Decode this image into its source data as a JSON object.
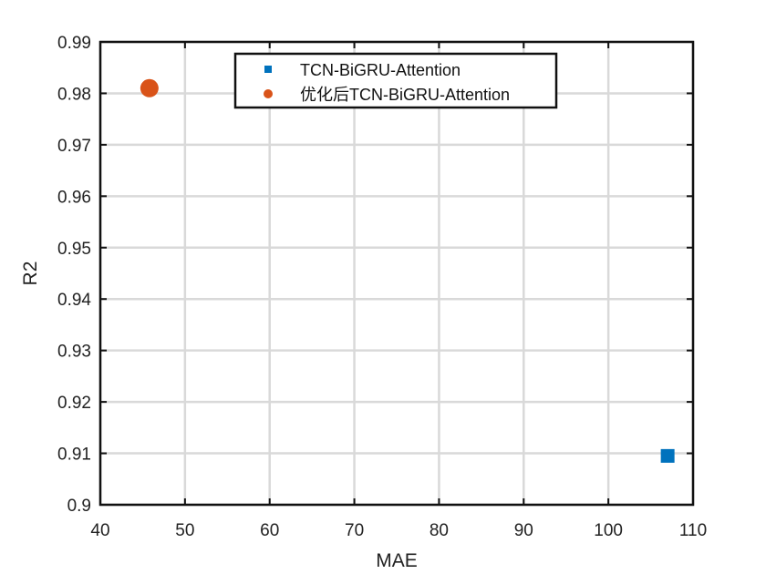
{
  "chart_data": {
    "type": "scatter",
    "xlabel": "MAE",
    "ylabel": "R2",
    "xlim": [
      40,
      110
    ],
    "ylim": [
      0.9,
      0.99
    ],
    "x_ticks": [
      "40",
      "50",
      "60",
      "70",
      "80",
      "90",
      "100",
      "110"
    ],
    "y_ticks": [
      "0.9",
      "0.91",
      "0.92",
      "0.93",
      "0.94",
      "0.95",
      "0.96",
      "0.97",
      "0.98",
      "0.99"
    ],
    "grid": true,
    "legend_position": "top-center",
    "series": [
      {
        "name": "TCN-BiGRU-Attention",
        "marker": "square",
        "color": "#0072BD",
        "x": [
          107
        ],
        "y": [
          0.9095
        ]
      },
      {
        "name": "优化后TCN-BiGRU-Attention",
        "marker": "circle",
        "color": "#D95319",
        "x": [
          45.8
        ],
        "y": [
          0.981
        ]
      }
    ]
  }
}
